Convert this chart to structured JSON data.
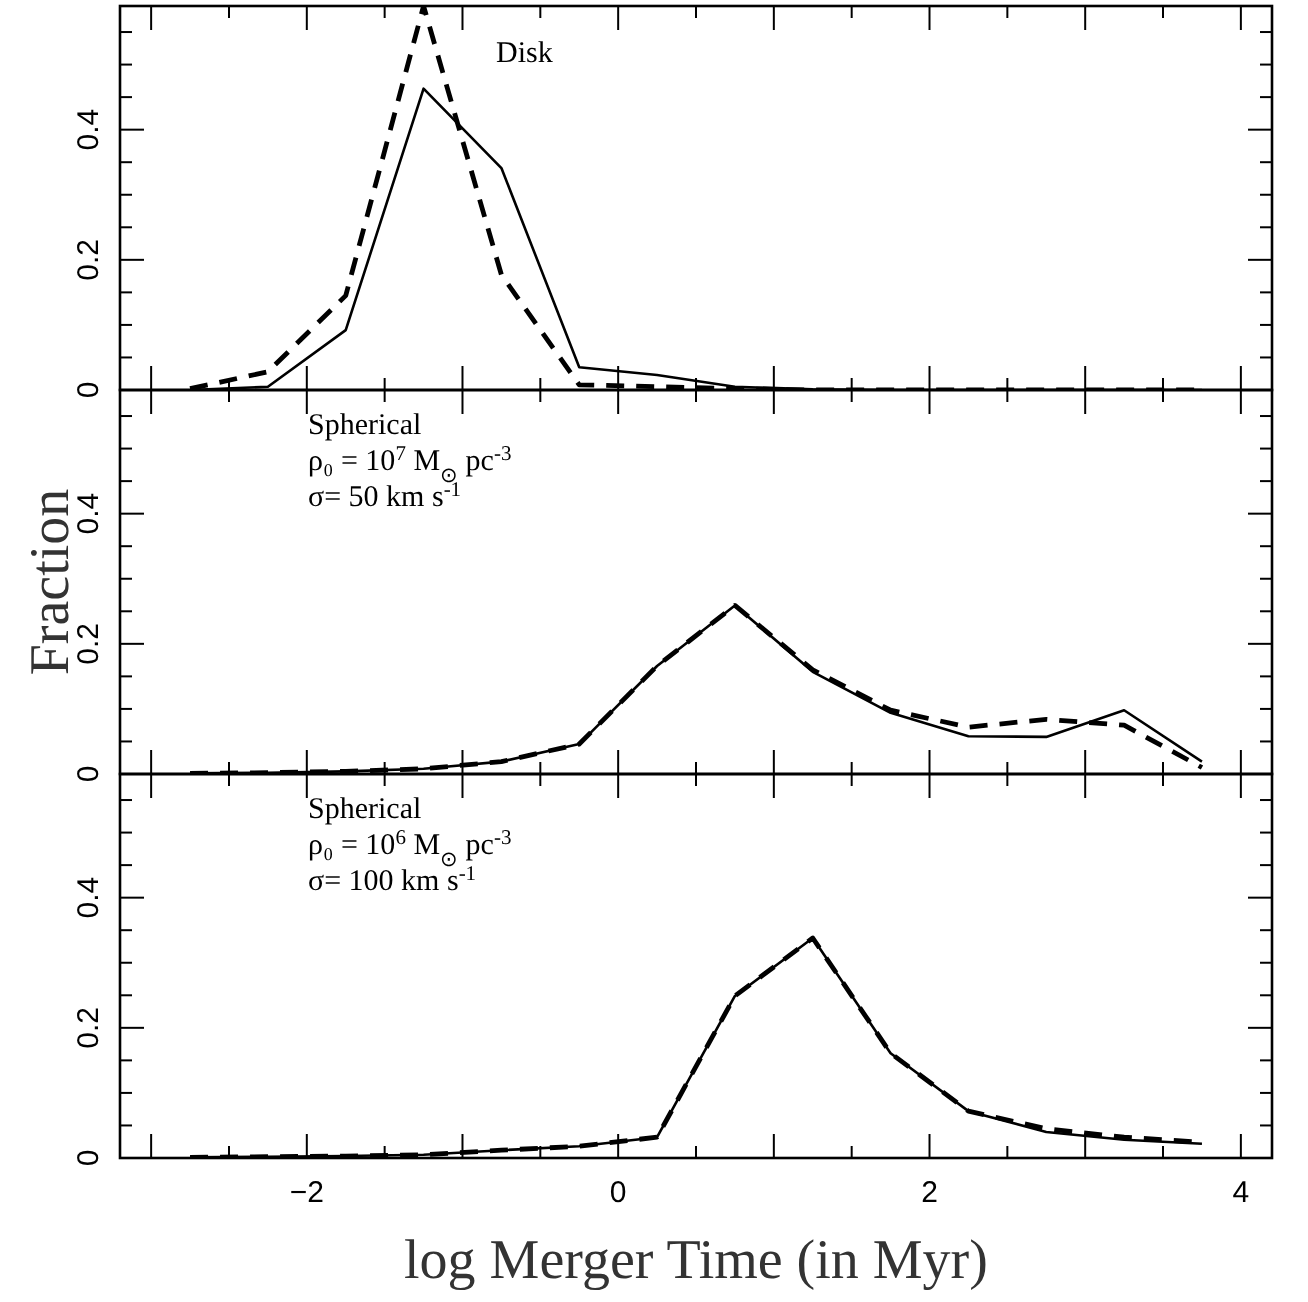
{
  "chart_data": [
    {
      "type": "line",
      "x": [
        -2.75,
        -2.25,
        -1.75,
        -1.25,
        -0.75,
        -0.25,
        0.25,
        0.75,
        1.25,
        1.75,
        2.25,
        2.75,
        3.25,
        3.75
      ],
      "xlim": [
        -3.2,
        4.2
      ],
      "xticks": [
        {
          "value": -3,
          "label": null
        },
        {
          "value": -2.5,
          "label": null
        },
        {
          "value": -2,
          "label": null
        },
        {
          "value": -1.5,
          "label": null
        },
        {
          "value": -1,
          "label": null
        },
        {
          "value": -0.5,
          "label": null
        },
        {
          "value": 0,
          "label": null
        },
        {
          "value": 0.5,
          "label": null
        },
        {
          "value": 1,
          "label": null
        },
        {
          "value": 1.5,
          "label": null
        },
        {
          "value": 2,
          "label": null
        },
        {
          "value": 2.5,
          "label": null
        },
        {
          "value": 3,
          "label": null
        },
        {
          "value": 3.5,
          "label": null
        },
        {
          "value": 4,
          "label": null
        }
      ],
      "ylim": [
        0,
        0.59
      ],
      "yticks": [
        0,
        {
          "value": 0.05,
          "label": null
        },
        {
          "value": 0.1,
          "label": null
        },
        {
          "value": 0.15,
          "label": null
        },
        0.2,
        {
          "value": 0.25,
          "label": null
        },
        {
          "value": 0.3,
          "label": null
        },
        {
          "value": 0.35,
          "label": null
        },
        0.4,
        {
          "value": 0.45,
          "label": null
        },
        {
          "value": 0.5,
          "label": null
        },
        {
          "value": 0.55,
          "label": null
        }
      ],
      "tick_labels": "y",
      "grid": false,
      "annotations": [
        "Disk"
      ],
      "series": [
        {
          "color": "#000000",
          "line_style": "solid",
          "values": [
            0,
            0.005,
            0.092,
            0.463,
            0.341,
            0.035,
            0.023,
            0.005,
            0.001,
            0,
            0,
            0,
            0,
            0
          ]
        },
        {
          "color": "#000000",
          "line_style": "dashed",
          "values": [
            0.002,
            0.028,
            0.145,
            0.59,
            0.177,
            0.008,
            0.005,
            0.002,
            0,
            0,
            0,
            0,
            0,
            0
          ]
        }
      ]
    },
    {
      "type": "line",
      "x": [
        -2.75,
        -2.25,
        -1.75,
        -1.25,
        -0.75,
        -0.25,
        0.25,
        0.75,
        1.25,
        1.75,
        2.25,
        2.75,
        3.25,
        3.75
      ],
      "xlim": [
        -3.2,
        4.2
      ],
      "xticks": [
        {
          "value": -3,
          "label": null
        },
        {
          "value": -2.5,
          "label": null
        },
        {
          "value": -2,
          "label": null
        },
        {
          "value": -1.5,
          "label": null
        },
        {
          "value": -1,
          "label": null
        },
        {
          "value": -0.5,
          "label": null
        },
        {
          "value": 0,
          "label": null
        },
        {
          "value": 0.5,
          "label": null
        },
        {
          "value": 1,
          "label": null
        },
        {
          "value": 1.5,
          "label": null
        },
        {
          "value": 2,
          "label": null
        },
        {
          "value": 2.5,
          "label": null
        },
        {
          "value": 3,
          "label": null
        },
        {
          "value": 3.5,
          "label": null
        },
        {
          "value": 4,
          "label": null
        }
      ],
      "ylim": [
        0,
        0.59
      ],
      "yticks": [
        0,
        {
          "value": 0.05,
          "label": null
        },
        {
          "value": 0.1,
          "label": null
        },
        {
          "value": 0.15,
          "label": null
        },
        0.2,
        {
          "value": 0.25,
          "label": null
        },
        {
          "value": 0.3,
          "label": null
        },
        {
          "value": 0.35,
          "label": null
        },
        0.4,
        {
          "value": 0.45,
          "label": null
        },
        {
          "value": 0.5,
          "label": null
        },
        {
          "value": 0.55,
          "label": null
        }
      ],
      "tick_labels": "y",
      "grid": false,
      "ylabel": "Fraction",
      "annotations": [
        "Spherical",
        "ρ₀ = 10$^{7}$ M$_{⊙}$ pc$^{-3}$",
        "σ= 50 km s$^{-1}$"
      ],
      "series": [
        {
          "color": "#000000",
          "line_style": "solid",
          "values": [
            0.001,
            0.002,
            0.004,
            0.008,
            0.019,
            0.046,
            0.166,
            0.259,
            0.157,
            0.094,
            0.058,
            0.057,
            0.098,
            0.019
          ]
        },
        {
          "color": "#000000",
          "line_style": "dashed",
          "values": [
            0.001,
            0.002,
            0.004,
            0.008,
            0.019,
            0.046,
            0.166,
            0.259,
            0.16,
            0.098,
            0.072,
            0.084,
            0.075,
            0.01
          ]
        }
      ]
    },
    {
      "type": "line",
      "x": [
        -2.75,
        -2.25,
        -1.75,
        -1.25,
        -0.75,
        -0.25,
        0.25,
        0.75,
        1.25,
        1.75,
        2.25,
        2.75,
        3.25,
        3.75
      ],
      "xlim": [
        -3.2,
        4.2
      ],
      "xticks": [
        {
          "value": -3,
          "label": null
        },
        {
          "value": -2.5,
          "label": null
        },
        {
          "value": -2,
          "label": "−2"
        },
        {
          "value": -1.5,
          "label": null
        },
        {
          "value": -1,
          "label": null
        },
        {
          "value": -0.5,
          "label": null
        },
        {
          "value": 0,
          "label": "0"
        },
        {
          "value": 0.5,
          "label": null
        },
        {
          "value": 1,
          "label": null
        },
        {
          "value": 1.5,
          "label": null
        },
        {
          "value": 2,
          "label": "2"
        },
        {
          "value": 2.5,
          "label": null
        },
        {
          "value": 3,
          "label": null
        },
        {
          "value": 3.5,
          "label": null
        },
        {
          "value": 4,
          "label": "4"
        }
      ],
      "ylim": [
        0,
        0.59
      ],
      "yticks": [
        0,
        {
          "value": 0.05,
          "label": null
        },
        {
          "value": 0.1,
          "label": null
        },
        {
          "value": 0.15,
          "label": null
        },
        0.2,
        {
          "value": 0.25,
          "label": null
        },
        {
          "value": 0.3,
          "label": null
        },
        {
          "value": 0.35,
          "label": null
        },
        0.4,
        {
          "value": 0.45,
          "label": null
        },
        {
          "value": 0.5,
          "label": null
        },
        {
          "value": 0.55,
          "label": null
        }
      ],
      "grid": false,
      "xlabel": "log Merger Time (in Myr)",
      "annotations": [
        "Spherical",
        "ρ₀ = 10$^{6}$ M$_{⊙}$ pc$^{-3}$",
        "σ= 100 km s$^{-1}$"
      ],
      "series": [
        {
          "color": "#000000",
          "line_style": "solid",
          "values": [
            0.001,
            0.002,
            0.003,
            0.005,
            0.012,
            0.018,
            0.032,
            0.249,
            0.338,
            0.161,
            0.072,
            0.04,
            0.028,
            0.022
          ]
        },
        {
          "color": "#000000",
          "line_style": "dashed",
          "values": [
            0.001,
            0.002,
            0.003,
            0.005,
            0.012,
            0.018,
            0.032,
            0.249,
            0.338,
            0.161,
            0.072,
            0.045,
            0.032,
            0.024
          ]
        }
      ]
    }
  ]
}
